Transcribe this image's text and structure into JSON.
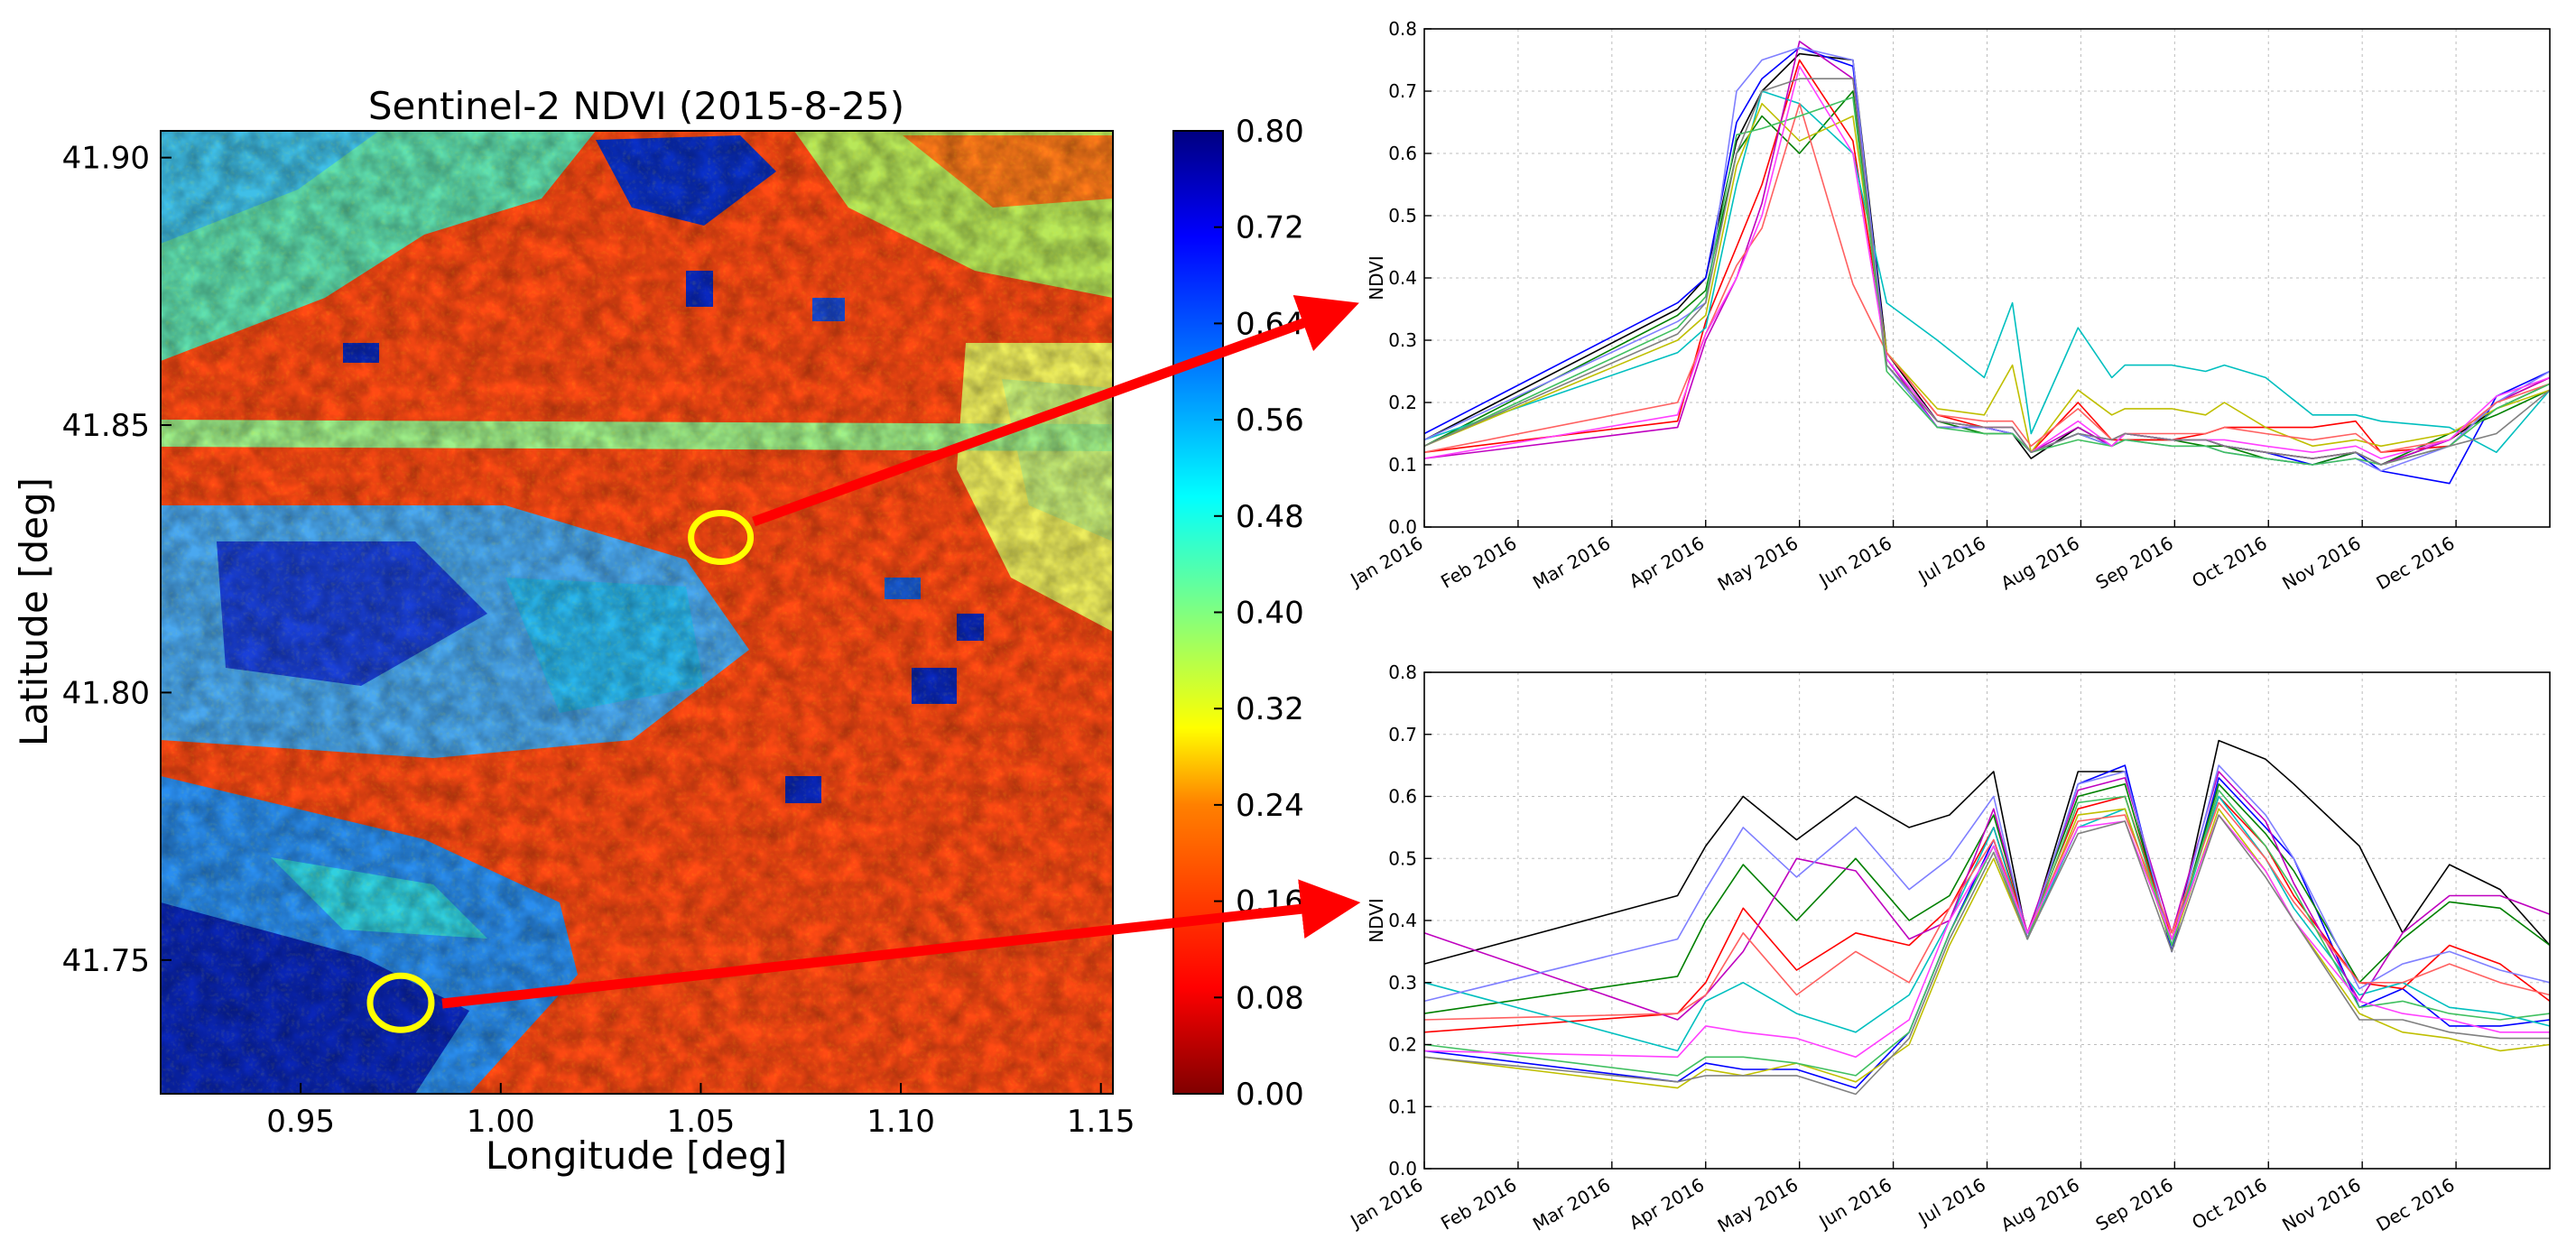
{
  "chart_data": [
    {
      "type": "heatmap",
      "title": "Sentinel-2 NDVI (2015-8-25)",
      "xlabel": "Longitude [deg]",
      "ylabel": "Latitude [deg]",
      "xlim": [
        0.915,
        1.153
      ],
      "ylim": [
        41.725,
        41.905
      ],
      "x_ticks": [
        "0.95",
        "1.00",
        "1.05",
        "1.10",
        "1.15"
      ],
      "y_ticks": [
        "41.75",
        "41.80",
        "41.85",
        "41.90"
      ],
      "colorbar": {
        "range": [
          0.0,
          0.8
        ],
        "ticks": [
          "0.00",
          "0.08",
          "0.16",
          "0.24",
          "0.32",
          "0.40",
          "0.48",
          "0.56",
          "0.64",
          "0.72",
          "0.80"
        ],
        "colormap": "jet_r",
        "colors": [
          "#800000",
          "#ff0000",
          "#ff8000",
          "#ffff00",
          "#80ff80",
          "#00ffff",
          "#0080ff",
          "#0000ff",
          "#000080"
        ]
      },
      "markers": [
        {
          "type": "circle",
          "color": "#ffff00",
          "lon": 1.055,
          "lat": 41.829
        },
        {
          "type": "circle",
          "color": "#ffff00",
          "lon": 0.975,
          "lat": 41.742
        }
      ],
      "arrows": {
        "color": "#ff0000"
      }
    },
    {
      "type": "line",
      "ylabel": "NDVI",
      "ylim": [
        0.0,
        0.8
      ],
      "y_ticks": [
        "0.0",
        "0.1",
        "0.2",
        "0.3",
        "0.4",
        "0.5",
        "0.6",
        "0.7",
        "0.8"
      ],
      "x_ticks": [
        "Jan 2016",
        "Feb 2016",
        "Mar 2016",
        "Apr 2016",
        "May 2016",
        "Jun 2016",
        "Jul 2016",
        "Aug 2016",
        "Sep 2016",
        "Oct 2016",
        "Nov 2016",
        "Dec 2016"
      ],
      "grid": true,
      "x": [
        0.0,
        2.7,
        3.0,
        3.33,
        3.6,
        4.0,
        4.57,
        4.93,
        5.47,
        5.97,
        6.27,
        6.47,
        6.97,
        7.33,
        7.47,
        7.97,
        8.33,
        8.53,
        8.97,
        9.47,
        9.93,
        10.2,
        10.93,
        11.43,
        12.0
      ],
      "series": [
        {
          "color": "#000000",
          "values": [
            0.14,
            0.35,
            0.4,
            0.62,
            0.7,
            0.76,
            0.75,
            0.28,
            0.17,
            0.16,
            0.15,
            0.11,
            0.16,
            0.13,
            0.15,
            0.14,
            0.14,
            0.13,
            0.12,
            0.11,
            0.12,
            0.1,
            0.14,
            0.19,
            0.23
          ]
        },
        {
          "color": "#0000ff",
          "values": [
            0.15,
            0.36,
            0.4,
            0.65,
            0.72,
            0.77,
            0.74,
            0.27,
            0.16,
            0.16,
            0.15,
            0.12,
            0.15,
            0.14,
            0.15,
            0.14,
            0.14,
            0.13,
            0.12,
            0.1,
            0.12,
            0.09,
            0.07,
            0.21,
            0.25
          ]
        },
        {
          "color": "#008000",
          "values": [
            0.13,
            0.34,
            0.38,
            0.6,
            0.66,
            0.6,
            0.7,
            0.26,
            0.17,
            0.15,
            0.15,
            0.12,
            0.15,
            0.13,
            0.14,
            0.14,
            0.13,
            0.13,
            0.11,
            0.1,
            0.12,
            0.1,
            0.15,
            0.18,
            0.22
          ]
        },
        {
          "color": "#ff0000",
          "values": [
            0.12,
            0.17,
            0.33,
            0.45,
            0.55,
            0.75,
            0.62,
            0.28,
            0.18,
            0.16,
            0.16,
            0.12,
            0.2,
            0.14,
            0.14,
            0.14,
            0.15,
            0.16,
            0.16,
            0.16,
            0.17,
            0.12,
            0.13,
            0.2,
            0.24
          ]
        },
        {
          "color": "#00bfbf",
          "values": [
            0.14,
            0.28,
            0.32,
            0.55,
            0.7,
            0.68,
            0.6,
            0.36,
            0.3,
            0.24,
            0.36,
            0.15,
            0.32,
            0.24,
            0.26,
            0.26,
            0.25,
            0.26,
            0.24,
            0.18,
            0.18,
            0.17,
            0.16,
            0.12,
            0.22
          ]
        },
        {
          "color": "#bf00bf",
          "values": [
            0.11,
            0.16,
            0.3,
            0.4,
            0.52,
            0.78,
            0.72,
            0.27,
            0.16,
            0.16,
            0.15,
            0.12,
            0.16,
            0.13,
            0.15,
            0.14,
            0.14,
            0.13,
            0.12,
            0.11,
            0.12,
            0.1,
            0.14,
            0.2,
            0.24
          ]
        },
        {
          "color": "#bfbf00",
          "values": [
            0.13,
            0.3,
            0.34,
            0.58,
            0.68,
            0.62,
            0.66,
            0.28,
            0.19,
            0.18,
            0.26,
            0.12,
            0.22,
            0.18,
            0.19,
            0.19,
            0.18,
            0.2,
            0.16,
            0.13,
            0.14,
            0.13,
            0.15,
            0.19,
            0.22
          ]
        },
        {
          "color": "#7f7fff",
          "values": [
            0.14,
            0.33,
            0.36,
            0.7,
            0.75,
            0.77,
            0.75,
            0.26,
            0.16,
            0.16,
            0.15,
            0.12,
            0.15,
            0.13,
            0.14,
            0.13,
            0.13,
            0.12,
            0.11,
            0.1,
            0.11,
            0.09,
            0.13,
            0.2,
            0.25
          ]
        },
        {
          "color": "#ff6060",
          "values": [
            0.12,
            0.2,
            0.31,
            0.42,
            0.48,
            0.68,
            0.39,
            0.28,
            0.18,
            0.17,
            0.17,
            0.13,
            0.19,
            0.14,
            0.15,
            0.15,
            0.15,
            0.16,
            0.15,
            0.14,
            0.15,
            0.12,
            0.14,
            0.2,
            0.23
          ]
        },
        {
          "color": "#40c060",
          "values": [
            0.13,
            0.32,
            0.37,
            0.63,
            0.64,
            0.66,
            0.69,
            0.25,
            0.16,
            0.15,
            0.15,
            0.12,
            0.14,
            0.13,
            0.14,
            0.13,
            0.13,
            0.12,
            0.11,
            0.1,
            0.11,
            0.1,
            0.13,
            0.19,
            0.23
          ]
        },
        {
          "color": "#ff40ff",
          "values": [
            0.11,
            0.18,
            0.31,
            0.4,
            0.5,
            0.74,
            0.6,
            0.27,
            0.17,
            0.16,
            0.16,
            0.12,
            0.17,
            0.13,
            0.15,
            0.14,
            0.14,
            0.14,
            0.13,
            0.12,
            0.13,
            0.11,
            0.14,
            0.21,
            0.24
          ]
        },
        {
          "color": "#808080",
          "values": [
            0.13,
            0.31,
            0.36,
            0.6,
            0.7,
            0.72,
            0.72,
            0.26,
            0.17,
            0.16,
            0.16,
            0.12,
            0.15,
            0.14,
            0.15,
            0.14,
            0.14,
            0.13,
            0.12,
            0.11,
            0.12,
            0.1,
            0.13,
            0.15,
            0.22
          ]
        }
      ]
    },
    {
      "type": "line",
      "ylabel": "NDVI",
      "ylim": [
        0.0,
        0.8
      ],
      "y_ticks": [
        "0.0",
        "0.1",
        "0.2",
        "0.3",
        "0.4",
        "0.5",
        "0.6",
        "0.7",
        "0.8"
      ],
      "x_ticks": [
        "Jan 2016",
        "Feb 2016",
        "Mar 2016",
        "Apr 2016",
        "May 2016",
        "Jun 2016",
        "Jul 2016",
        "Aug 2016",
        "Sep 2016",
        "Oct 2016",
        "Nov 2016",
        "Dec 2016"
      ],
      "grid": true,
      "x": [
        0.0,
        2.7,
        3.0,
        3.4,
        3.97,
        4.6,
        5.17,
        5.6,
        6.07,
        6.43,
        6.97,
        7.47,
        7.97,
        8.47,
        8.97,
        9.27,
        9.97,
        10.43,
        10.93,
        11.47,
        12.0
      ],
      "series": [
        {
          "color": "#000000",
          "values": [
            0.33,
            0.44,
            0.52,
            0.6,
            0.53,
            0.6,
            0.55,
            0.57,
            0.64,
            0.37,
            0.64,
            0.64,
            0.35,
            0.69,
            0.66,
            0.62,
            0.52,
            0.38,
            0.49,
            0.45,
            0.36
          ]
        },
        {
          "color": "#0000ff",
          "values": [
            0.19,
            0.14,
            0.17,
            0.16,
            0.16,
            0.13,
            0.22,
            0.38,
            0.53,
            0.37,
            0.62,
            0.65,
            0.35,
            0.63,
            0.55,
            0.5,
            0.26,
            0.29,
            0.23,
            0.23,
            0.24
          ]
        },
        {
          "color": "#008000",
          "values": [
            0.25,
            0.31,
            0.4,
            0.49,
            0.4,
            0.5,
            0.4,
            0.44,
            0.57,
            0.38,
            0.6,
            0.62,
            0.36,
            0.62,
            0.54,
            0.48,
            0.3,
            0.37,
            0.43,
            0.42,
            0.36
          ]
        },
        {
          "color": "#ff0000",
          "values": [
            0.22,
            0.25,
            0.3,
            0.42,
            0.32,
            0.38,
            0.36,
            0.42,
            0.55,
            0.38,
            0.58,
            0.6,
            0.37,
            0.6,
            0.52,
            0.44,
            0.3,
            0.29,
            0.36,
            0.33,
            0.27
          ]
        },
        {
          "color": "#00bfbf",
          "values": [
            0.3,
            0.19,
            0.27,
            0.3,
            0.25,
            0.22,
            0.28,
            0.4,
            0.55,
            0.37,
            0.55,
            0.58,
            0.36,
            0.6,
            0.5,
            0.42,
            0.28,
            0.3,
            0.26,
            0.25,
            0.23
          ]
        },
        {
          "color": "#bf00bf",
          "values": [
            0.38,
            0.24,
            0.28,
            0.35,
            0.5,
            0.48,
            0.37,
            0.4,
            0.58,
            0.38,
            0.61,
            0.63,
            0.38,
            0.64,
            0.56,
            0.46,
            0.27,
            0.38,
            0.44,
            0.44,
            0.41
          ]
        },
        {
          "color": "#bfbf00",
          "values": [
            0.18,
            0.13,
            0.16,
            0.15,
            0.17,
            0.14,
            0.2,
            0.36,
            0.5,
            0.37,
            0.57,
            0.58,
            0.36,
            0.58,
            0.48,
            0.4,
            0.25,
            0.22,
            0.21,
            0.19,
            0.2
          ]
        },
        {
          "color": "#7f7fff",
          "values": [
            0.27,
            0.37,
            0.45,
            0.55,
            0.47,
            0.55,
            0.45,
            0.5,
            0.6,
            0.37,
            0.62,
            0.64,
            0.36,
            0.65,
            0.57,
            0.5,
            0.29,
            0.33,
            0.35,
            0.32,
            0.3
          ]
        },
        {
          "color": "#ff6060",
          "values": [
            0.24,
            0.25,
            0.28,
            0.38,
            0.28,
            0.35,
            0.3,
            0.42,
            0.53,
            0.38,
            0.56,
            0.57,
            0.38,
            0.59,
            0.5,
            0.43,
            0.3,
            0.3,
            0.33,
            0.3,
            0.28
          ]
        },
        {
          "color": "#40c060",
          "values": [
            0.2,
            0.15,
            0.18,
            0.18,
            0.17,
            0.15,
            0.22,
            0.38,
            0.52,
            0.37,
            0.59,
            0.6,
            0.36,
            0.61,
            0.52,
            0.45,
            0.26,
            0.27,
            0.25,
            0.24,
            0.25
          ]
        },
        {
          "color": "#ff40ff",
          "values": [
            0.19,
            0.18,
            0.23,
            0.22,
            0.21,
            0.18,
            0.24,
            0.4,
            0.52,
            0.38,
            0.55,
            0.56,
            0.37,
            0.57,
            0.48,
            0.4,
            0.27,
            0.25,
            0.24,
            0.22,
            0.22
          ]
        },
        {
          "color": "#808080",
          "values": [
            0.18,
            0.14,
            0.15,
            0.15,
            0.15,
            0.12,
            0.21,
            0.37,
            0.51,
            0.37,
            0.54,
            0.56,
            0.35,
            0.57,
            0.47,
            0.4,
            0.24,
            0.24,
            0.22,
            0.21,
            0.21
          ]
        }
      ]
    }
  ]
}
